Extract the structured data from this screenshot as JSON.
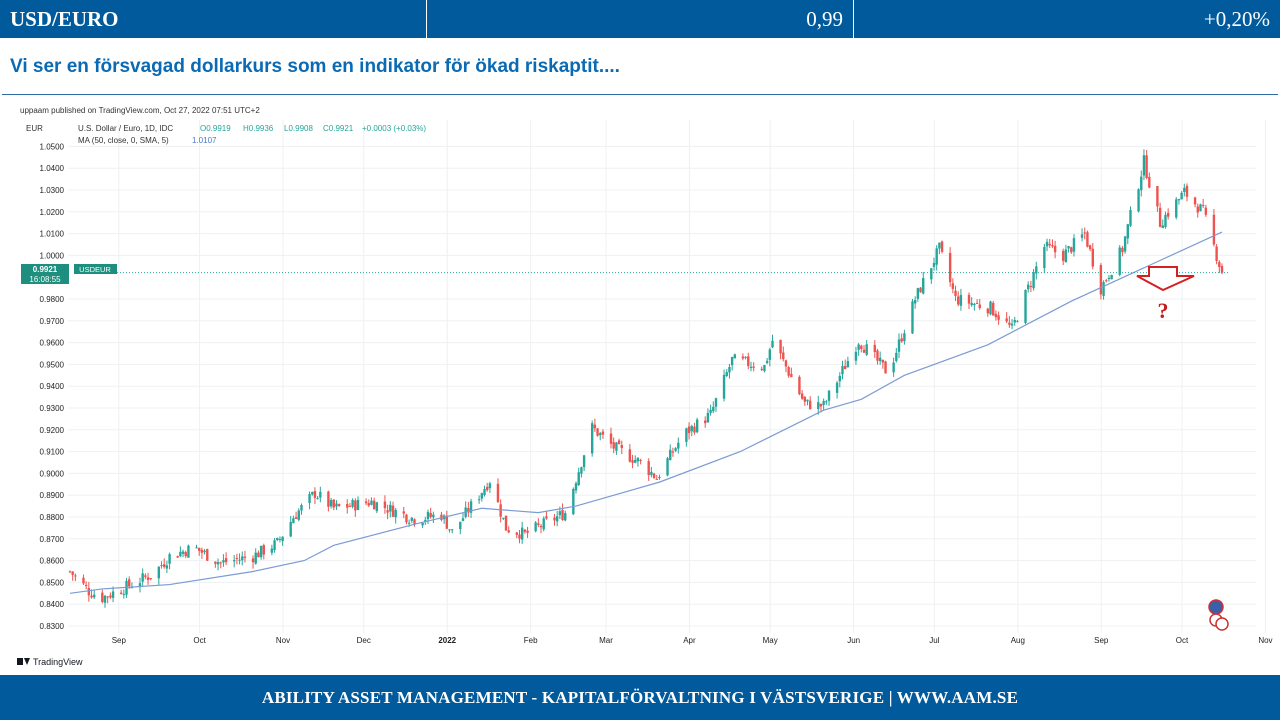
{
  "header": {
    "pair": "USD/EURO",
    "price": "0,99",
    "change": "+0,20%"
  },
  "subtitle": "Vi ser en försvagad dollarkurs som en indikator för ökad riskaptit....",
  "chart_meta": {
    "published": "uppaam published on TradingView.com, Oct 27, 2022 07:51 UTC+2",
    "currency": "EUR",
    "symbol_line": "U.S. Dollar / Euro, 1D, IDC",
    "ohlc": {
      "o": "O0.9919",
      "h": "H0.9936",
      "l": "L0.9908",
      "c": "C0.9921",
      "chg": "+0.0003 (+0.03%)"
    },
    "ma_label": "MA (50, close, 0, SMA, 5)",
    "ma_value": "1.0107",
    "price_tag": "0.9921",
    "time_tag": "16:08:55",
    "symbol_tag": "USDEUR",
    "annotation": "?",
    "brand": "TradingView"
  },
  "colors": {
    "up": "#26a69a",
    "down": "#ef5350",
    "ma": "#7b9bd4",
    "accent": "#005a9c",
    "arrow": "#d42020"
  },
  "chart_data": {
    "type": "candlestick",
    "title": "U.S. Dollar / Euro, 1D, IDC",
    "ylabel": "EUR",
    "ylim": [
      0.83,
      1.05
    ],
    "y_ticks": [
      "1.0500",
      "1.0400",
      "1.0300",
      "1.0200",
      "1.0100",
      "1.0000",
      "0.9800",
      "0.9700",
      "0.9600",
      "0.9500",
      "0.9400",
      "0.9300",
      "0.9200",
      "0.9100",
      "0.9000",
      "0.8900",
      "0.8800",
      "0.8700",
      "0.8600",
      "0.8500",
      "0.8400",
      "0.8300"
    ],
    "x_ticks": [
      "Sep",
      "Oct",
      "Nov",
      "Dec",
      "2022",
      "Feb",
      "Mar",
      "Apr",
      "May",
      "Jun",
      "Jul",
      "Aug",
      "Sep",
      "Oct",
      "Nov"
    ],
    "x_range": [
      "2021-08-25",
      "2022-10-27"
    ],
    "price_trajectory": [
      {
        "date": "2021-08-25",
        "close": 0.855
      },
      {
        "date": "2021-09-01",
        "close": 0.846
      },
      {
        "date": "2021-09-06",
        "close": 0.843
      },
      {
        "date": "2021-09-15",
        "close": 0.848
      },
      {
        "date": "2021-09-25",
        "close": 0.854
      },
      {
        "date": "2021-10-01",
        "close": 0.862
      },
      {
        "date": "2021-10-10",
        "close": 0.866
      },
      {
        "date": "2021-10-20",
        "close": 0.859
      },
      {
        "date": "2021-11-01",
        "close": 0.862
      },
      {
        "date": "2021-11-10",
        "close": 0.868
      },
      {
        "date": "2021-11-16",
        "close": 0.88
      },
      {
        "date": "2021-11-24",
        "close": 0.891
      },
      {
        "date": "2021-12-01",
        "close": 0.884
      },
      {
        "date": "2021-12-15",
        "close": 0.887
      },
      {
        "date": "2021-12-31",
        "close": 0.879
      },
      {
        "date": "2022-01-10",
        "close": 0.881
      },
      {
        "date": "2022-01-14",
        "close": 0.873
      },
      {
        "date": "2022-01-28",
        "close": 0.897
      },
      {
        "date": "2022-02-03",
        "close": 0.875
      },
      {
        "date": "2022-02-10",
        "close": 0.872
      },
      {
        "date": "2022-02-25",
        "close": 0.882
      },
      {
        "date": "2022-03-07",
        "close": 0.921
      },
      {
        "date": "2022-03-15",
        "close": 0.912
      },
      {
        "date": "2022-03-25",
        "close": 0.905
      },
      {
        "date": "2022-03-31",
        "close": 0.898
      },
      {
        "date": "2022-04-10",
        "close": 0.918
      },
      {
        "date": "2022-04-20",
        "close": 0.927
      },
      {
        "date": "2022-04-28",
        "close": 0.952
      },
      {
        "date": "2022-05-10",
        "close": 0.949
      },
      {
        "date": "2022-05-13",
        "close": 0.961
      },
      {
        "date": "2022-05-25",
        "close": 0.932
      },
      {
        "date": "2022-06-01",
        "close": 0.931
      },
      {
        "date": "2022-06-14",
        "close": 0.961
      },
      {
        "date": "2022-06-25",
        "close": 0.946
      },
      {
        "date": "2022-07-05",
        "close": 0.98
      },
      {
        "date": "2022-07-14",
        "close": 1.003
      },
      {
        "date": "2022-07-20",
        "close": 0.98
      },
      {
        "date": "2022-08-02",
        "close": 0.976
      },
      {
        "date": "2022-08-10",
        "close": 0.966
      },
      {
        "date": "2022-08-22",
        "close": 1.004
      },
      {
        "date": "2022-08-29",
        "close": 1.0
      },
      {
        "date": "2022-09-06",
        "close": 1.01
      },
      {
        "date": "2022-09-12",
        "close": 0.985
      },
      {
        "date": "2022-09-20",
        "close": 1.003
      },
      {
        "date": "2022-09-28",
        "close": 1.043
      },
      {
        "date": "2022-10-04",
        "close": 1.015
      },
      {
        "date": "2022-10-13",
        "close": 1.029
      },
      {
        "date": "2022-10-20",
        "close": 1.02
      },
      {
        "date": "2022-10-27",
        "close": 0.9921
      }
    ],
    "series": [
      {
        "name": "MA (50, close, 0, SMA, 5)",
        "points": [
          {
            "date": "2021-08-25",
            "value": 0.845
          },
          {
            "date": "2021-09-06",
            "value": 0.847
          },
          {
            "date": "2021-10-01",
            "value": 0.849
          },
          {
            "date": "2021-11-01",
            "value": 0.855
          },
          {
            "date": "2021-11-20",
            "value": 0.86
          },
          {
            "date": "2021-12-01",
            "value": 0.867
          },
          {
            "date": "2022-01-01",
            "value": 0.877
          },
          {
            "date": "2022-01-25",
            "value": 0.884
          },
          {
            "date": "2022-02-15",
            "value": 0.882
          },
          {
            "date": "2022-03-01",
            "value": 0.885
          },
          {
            "date": "2022-04-01",
            "value": 0.896
          },
          {
            "date": "2022-05-01",
            "value": 0.91
          },
          {
            "date": "2022-06-01",
            "value": 0.929
          },
          {
            "date": "2022-06-15",
            "value": 0.934
          },
          {
            "date": "2022-07-01",
            "value": 0.945
          },
          {
            "date": "2022-08-01",
            "value": 0.959
          },
          {
            "date": "2022-09-01",
            "value": 0.979
          },
          {
            "date": "2022-10-01",
            "value": 0.996
          },
          {
            "date": "2022-10-27",
            "value": 1.0107
          }
        ]
      }
    ],
    "last_price": 0.9921,
    "grid": true
  },
  "footer": "ABILITY ASSET MANAGEMENT -  KAPITALFÖRVALTNING I VÄSTSVERIGE   |   WWW.AAM.SE"
}
